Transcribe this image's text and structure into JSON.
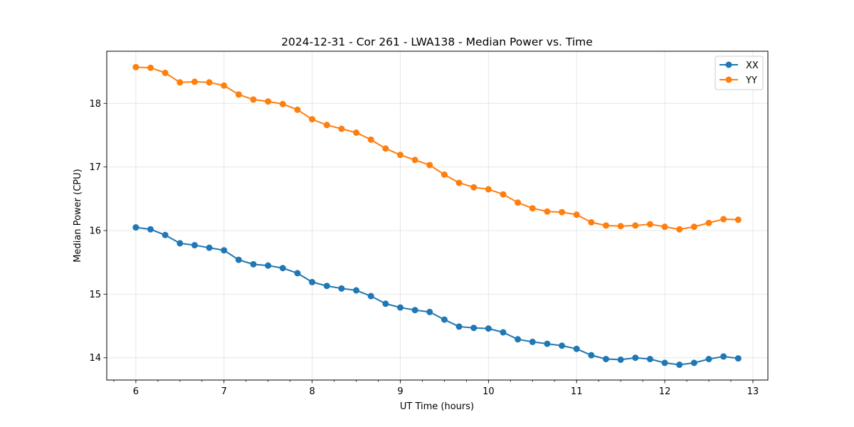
{
  "chart_data": {
    "type": "line",
    "title": "2024-12-31 - Cor 261 - LWA138 - Median Power vs. Time",
    "xlabel": "UT Time (hours)",
    "ylabel": "Median Power (CPU)",
    "xlim": [
      5.67,
      13.17
    ],
    "ylim": [
      13.65,
      18.82
    ],
    "xticks": [
      6,
      7,
      8,
      9,
      10,
      11,
      12,
      13
    ],
    "xticks_minor_step": 0.25,
    "yticks": [
      14,
      15,
      16,
      17,
      18
    ],
    "grid": true,
    "legend_position": "upper-right",
    "x": [
      6.0,
      6.1667,
      6.3333,
      6.5,
      6.6667,
      6.8333,
      7.0,
      7.1667,
      7.3333,
      7.5,
      7.6667,
      7.8333,
      8.0,
      8.1667,
      8.3333,
      8.5,
      8.6667,
      8.8333,
      9.0,
      9.1667,
      9.3333,
      9.5,
      9.6667,
      9.8333,
      10.0,
      10.1667,
      10.3333,
      10.5,
      10.6667,
      10.8333,
      11.0,
      11.1667,
      11.3333,
      11.5,
      11.6667,
      11.8333,
      12.0,
      12.1667,
      12.3333,
      12.5,
      12.6667,
      12.8333
    ],
    "series": [
      {
        "name": "XX",
        "color": "#1f77b4",
        "values": [
          16.05,
          16.02,
          15.93,
          15.8,
          15.77,
          15.73,
          15.69,
          15.54,
          15.47,
          15.45,
          15.41,
          15.33,
          15.19,
          15.13,
          15.09,
          15.06,
          14.97,
          14.85,
          14.79,
          14.75,
          14.72,
          14.6,
          14.49,
          14.47,
          14.46,
          14.4,
          14.29,
          14.25,
          14.22,
          14.19,
          14.14,
          14.04,
          13.98,
          13.97,
          14.0,
          13.98,
          13.92,
          13.89,
          13.92,
          13.98,
          14.02,
          13.99
        ]
      },
      {
        "name": "YY",
        "color": "#ff7f0e",
        "values": [
          18.57,
          18.56,
          18.48,
          18.33,
          18.34,
          18.33,
          18.28,
          18.14,
          18.06,
          18.03,
          17.99,
          17.9,
          17.75,
          17.66,
          17.6,
          17.54,
          17.43,
          17.29,
          17.19,
          17.11,
          17.03,
          16.88,
          16.75,
          16.68,
          16.65,
          16.57,
          16.44,
          16.35,
          16.3,
          16.29,
          16.25,
          16.13,
          16.08,
          16.07,
          16.08,
          16.1,
          16.06,
          16.02,
          16.06,
          16.12,
          16.18,
          16.17
        ]
      }
    ]
  }
}
